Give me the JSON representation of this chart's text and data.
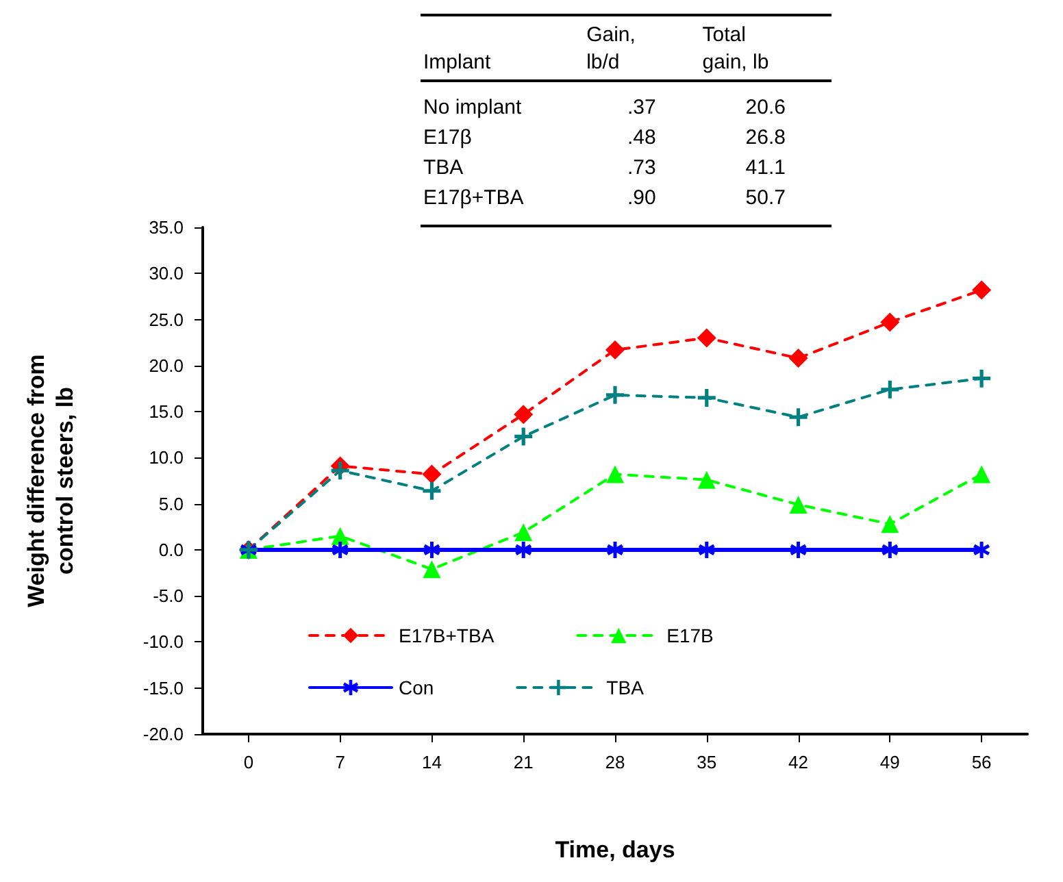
{
  "chart_data": {
    "type": "line",
    "xlabel": "Time, days",
    "ylabel": "Weight difference from\ncontrol steers, lb",
    "x": [
      0,
      7,
      14,
      21,
      28,
      35,
      42,
      49,
      56
    ],
    "series": [
      {
        "name": "E17B+TBA",
        "color": "#ff0000",
        "marker": "diamond",
        "line_style": "dashed",
        "values": [
          0,
          9.1,
          8.2,
          14.7,
          21.7,
          23.0,
          20.8,
          24.7,
          28.2
        ]
      },
      {
        "name": "E17B",
        "color": "#00ff00",
        "marker": "triangle",
        "line_style": "dashed",
        "values": [
          0,
          1.5,
          -2.1,
          1.9,
          8.2,
          7.6,
          4.9,
          2.8,
          8.2
        ]
      },
      {
        "name": "Con",
        "color": "#0000ff",
        "marker": "star",
        "line_style": "solid",
        "values": [
          0,
          0,
          0,
          0,
          0,
          0,
          0,
          0,
          0
        ]
      },
      {
        "name": "TBA",
        "color": "#008080",
        "marker": "cross",
        "line_style": "dashed",
        "values": [
          0,
          8.6,
          6.4,
          12.3,
          16.8,
          16.5,
          14.4,
          17.4,
          18.6
        ]
      }
    ],
    "xlim": [
      -3.5,
      59.5
    ],
    "xticks": [
      0,
      7,
      14,
      21,
      28,
      35,
      42,
      49,
      56
    ],
    "ylim": [
      -20,
      35
    ],
    "yticks": [
      {
        "value": -20,
        "label": "-20.0"
      },
      {
        "value": -15,
        "label": "-15.0"
      },
      {
        "value": -10,
        "label": "-10.0"
      },
      {
        "value": -5,
        "label": "-5.0"
      },
      {
        "value": 0,
        "label": "0.0"
      },
      {
        "value": 5,
        "label": "5.0"
      },
      {
        "value": 10,
        "label": "10.0"
      },
      {
        "value": 15,
        "label": "15.0"
      },
      {
        "value": 20,
        "label": "20.0"
      },
      {
        "value": 25,
        "label": "25.0"
      },
      {
        "value": 30,
        "label": "30.0"
      },
      {
        "value": 35,
        "label": "35.0"
      }
    ],
    "grid": false,
    "legend": "bottom",
    "annotations": [
      "Implant",
      "Gain, lb/d",
      "Total gain, lb",
      "No implant",
      ".37",
      "20.6",
      "E17β",
      ".48",
      "26.8",
      "TBA",
      ".73",
      "41.1",
      "E17β+TBA",
      ".90",
      "50.7"
    ]
  }
}
